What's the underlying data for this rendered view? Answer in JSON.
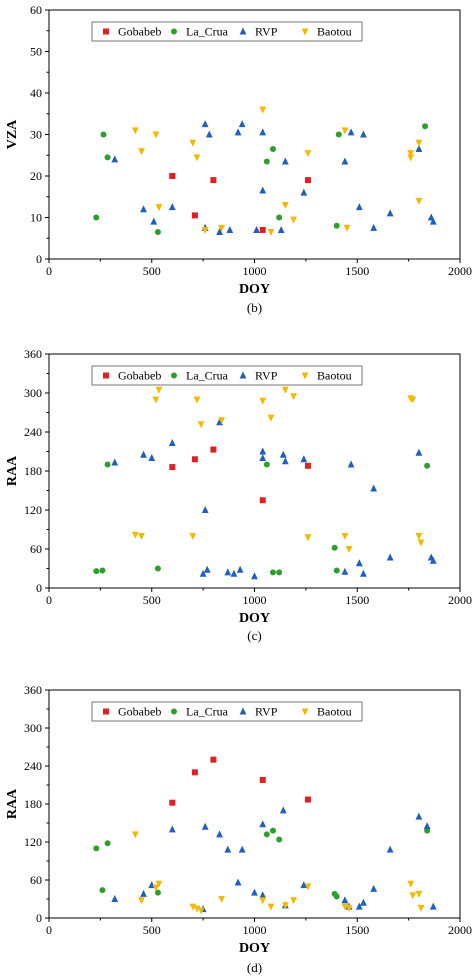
{
  "colors": {
    "Gobabeb": "#e02020",
    "La_Crua": "#2ca02c",
    "RVP": "#1f5fbf",
    "Baotou": "#f5b800",
    "axis": "#000000",
    "legend_border": "#555555"
  },
  "chart_data": [
    {
      "type": "scatter",
      "panel_label": "(b)",
      "xlabel": "DOY",
      "ylabel": "VZA",
      "xlim": [
        0,
        2000
      ],
      "ylim": [
        0,
        60
      ],
      "xticks": [
        0,
        500,
        1000,
        1500,
        2000
      ],
      "yticks": [
        0,
        10,
        20,
        30,
        40,
        50,
        60
      ],
      "legend_position": "top",
      "series": [
        {
          "name": "Gobabeb",
          "marker": "square",
          "points": [
            [
              600,
              20
            ],
            [
              710,
              10.5
            ],
            [
              800,
              19
            ],
            [
              1040,
              7
            ],
            [
              1260,
              19
            ]
          ]
        },
        {
          "name": "La_Crua",
          "marker": "circle",
          "points": [
            [
              230,
              10
            ],
            [
              265,
              30
            ],
            [
              285,
              24.5
            ],
            [
              530,
              6.5
            ],
            [
              1060,
              23.5
            ],
            [
              1090,
              26.5
            ],
            [
              1120,
              10
            ],
            [
              1400,
              8
            ],
            [
              1410,
              30
            ],
            [
              1830,
              32
            ]
          ]
        },
        {
          "name": "RVP",
          "marker": "triangle-up",
          "points": [
            [
              320,
              24
            ],
            [
              460,
              12
            ],
            [
              510,
              9
            ],
            [
              600,
              12.5
            ],
            [
              760,
              32.5
            ],
            [
              760,
              7.5
            ],
            [
              780,
              30
            ],
            [
              830,
              6.5
            ],
            [
              880,
              7
            ],
            [
              920,
              30.5
            ],
            [
              940,
              32.5
            ],
            [
              1010,
              7
            ],
            [
              1040,
              16.5
            ],
            [
              1040,
              30.5
            ],
            [
              1130,
              7
            ],
            [
              1150,
              23.5
            ],
            [
              1240,
              16
            ],
            [
              1440,
              23.5
            ],
            [
              1470,
              30.5
            ],
            [
              1510,
              12.5
            ],
            [
              1530,
              30
            ],
            [
              1580,
              7.5
            ],
            [
              1660,
              11
            ],
            [
              1800,
              26.5
            ],
            [
              1860,
              10
            ],
            [
              1870,
              9
            ]
          ]
        },
        {
          "name": "Baotou",
          "marker": "triangle-down",
          "points": [
            [
              420,
              31
            ],
            [
              450,
              26
            ],
            [
              520,
              30
            ],
            [
              535,
              12.5
            ],
            [
              700,
              28
            ],
            [
              720,
              24.5
            ],
            [
              760,
              7
            ],
            [
              840,
              7.5
            ],
            [
              1040,
              36
            ],
            [
              1080,
              6.5
            ],
            [
              1150,
              13
            ],
            [
              1190,
              9.5
            ],
            [
              1260,
              25.5
            ],
            [
              1440,
              31
            ],
            [
              1450,
              7.5
            ],
            [
              1760,
              24.5
            ],
            [
              1760,
              25.5
            ],
            [
              1800,
              14
            ],
            [
              1800,
              28
            ]
          ]
        }
      ]
    },
    {
      "type": "scatter",
      "panel_label": "(c)",
      "xlabel": "DOY",
      "ylabel": "RAA",
      "xlim": [
        0,
        2000
      ],
      "ylim": [
        0,
        360
      ],
      "xticks": [
        0,
        500,
        1000,
        1500,
        2000
      ],
      "yticks": [
        0,
        60,
        120,
        180,
        240,
        300,
        360
      ],
      "legend_position": "top",
      "series": [
        {
          "name": "Gobabeb",
          "marker": "square",
          "points": [
            [
              600,
              186
            ],
            [
              710,
              198
            ],
            [
              800,
              213
            ],
            [
              1040,
              135
            ],
            [
              1260,
              188
            ]
          ]
        },
        {
          "name": "La_Crua",
          "marker": "circle",
          "points": [
            [
              230,
              26
            ],
            [
              260,
              27
            ],
            [
              285,
              190
            ],
            [
              530,
              30
            ],
            [
              1060,
              190
            ],
            [
              1090,
              24
            ],
            [
              1120,
              24
            ],
            [
              1390,
              62
            ],
            [
              1400,
              27
            ],
            [
              1840,
              188
            ]
          ]
        },
        {
          "name": "RVP",
          "marker": "triangle-up",
          "points": [
            [
              320,
              193
            ],
            [
              460,
              205
            ],
            [
              500,
              200
            ],
            [
              600,
              223
            ],
            [
              750,
              22
            ],
            [
              760,
              120
            ],
            [
              770,
              28
            ],
            [
              830,
              255
            ],
            [
              870,
              24
            ],
            [
              900,
              22
            ],
            [
              930,
              28
            ],
            [
              1000,
              18
            ],
            [
              1040,
              210
            ],
            [
              1040,
              200
            ],
            [
              1140,
              205
            ],
            [
              1150,
              195
            ],
            [
              1240,
              198
            ],
            [
              1440,
              25
            ],
            [
              1470,
              190
            ],
            [
              1510,
              38
            ],
            [
              1530,
              22
            ],
            [
              1580,
              153
            ],
            [
              1660,
              47
            ],
            [
              1800,
              208
            ],
            [
              1860,
              47
            ],
            [
              1870,
              42
            ]
          ]
        },
        {
          "name": "Baotou",
          "marker": "triangle-down",
          "points": [
            [
              420,
              82
            ],
            [
              450,
              80
            ],
            [
              520,
              290
            ],
            [
              535,
              305
            ],
            [
              700,
              80
            ],
            [
              720,
              290
            ],
            [
              740,
              252
            ],
            [
              840,
              258
            ],
            [
              1040,
              288
            ],
            [
              1080,
              262
            ],
            [
              1150,
              305
            ],
            [
              1190,
              295
            ],
            [
              1260,
              78
            ],
            [
              1440,
              80
            ],
            [
              1460,
              60
            ],
            [
              1760,
              292
            ],
            [
              1770,
              290
            ],
            [
              1800,
              80
            ],
            [
              1810,
              70
            ]
          ]
        }
      ]
    },
    {
      "type": "scatter",
      "panel_label": "(d)",
      "xlabel": "DOY",
      "ylabel": "RAA",
      "xlim": [
        0,
        2000
      ],
      "ylim": [
        0,
        360
      ],
      "xticks": [
        0,
        500,
        1000,
        1500,
        2000
      ],
      "yticks": [
        0,
        60,
        120,
        180,
        240,
        300,
        360
      ],
      "legend_position": "top",
      "series": [
        {
          "name": "Gobabeb",
          "marker": "square",
          "points": [
            [
              600,
              182
            ],
            [
              710,
              230
            ],
            [
              800,
              250
            ],
            [
              1040,
              218
            ],
            [
              1260,
              187
            ]
          ]
        },
        {
          "name": "La_Crua",
          "marker": "circle",
          "points": [
            [
              230,
              110
            ],
            [
              260,
              44
            ],
            [
              285,
              118
            ],
            [
              530,
              40
            ],
            [
              1060,
              132
            ],
            [
              1090,
              138
            ],
            [
              1120,
              124
            ],
            [
              1390,
              38
            ],
            [
              1400,
              34
            ],
            [
              1840,
              138
            ]
          ]
        },
        {
          "name": "RVP",
          "marker": "triangle-up",
          "points": [
            [
              320,
              30
            ],
            [
              460,
              38
            ],
            [
              500,
              52
            ],
            [
              600,
              140
            ],
            [
              750,
              14
            ],
            [
              760,
              144
            ],
            [
              830,
              132
            ],
            [
              870,
              108
            ],
            [
              920,
              56
            ],
            [
              940,
              108
            ],
            [
              1000,
              40
            ],
            [
              1040,
              148
            ],
            [
              1040,
              36
            ],
            [
              1140,
              170
            ],
            [
              1150,
              20
            ],
            [
              1240,
              52
            ],
            [
              1440,
              28
            ],
            [
              1460,
              18
            ],
            [
              1510,
              18
            ],
            [
              1530,
              24
            ],
            [
              1580,
              46
            ],
            [
              1660,
              108
            ],
            [
              1800,
              160
            ],
            [
              1840,
              145
            ],
            [
              1870,
              18
            ]
          ]
        },
        {
          "name": "Baotou",
          "marker": "triangle-down",
          "points": [
            [
              420,
              132
            ],
            [
              450,
              28
            ],
            [
              520,
              48
            ],
            [
              535,
              54
            ],
            [
              700,
              18
            ],
            [
              720,
              15
            ],
            [
              740,
              12
            ],
            [
              840,
              30
            ],
            [
              1040,
              28
            ],
            [
              1080,
              18
            ],
            [
              1150,
              20
            ],
            [
              1190,
              28
            ],
            [
              1260,
              50
            ],
            [
              1440,
              18
            ],
            [
              1460,
              16
            ],
            [
              1760,
              54
            ],
            [
              1770,
              36
            ],
            [
              1800,
              38
            ],
            [
              1810,
              16
            ]
          ]
        }
      ]
    }
  ]
}
